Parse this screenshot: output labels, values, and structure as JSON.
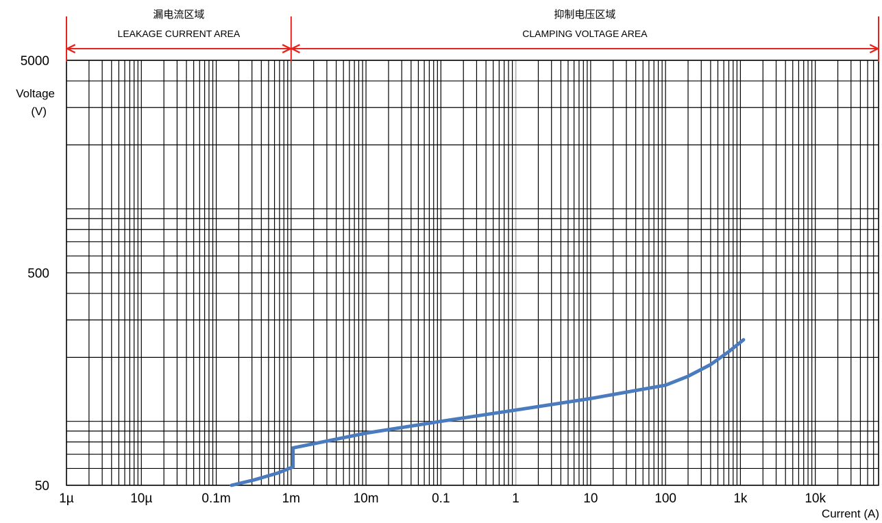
{
  "chart_data": {
    "type": "line",
    "x_scale": "log",
    "y_scale": "log",
    "xlim": [
      1e-06,
      70000
    ],
    "ylim": [
      50,
      5000
    ],
    "grid": true,
    "x_ticks": [
      {
        "value": 1e-06,
        "label": "1µ"
      },
      {
        "value": 1e-05,
        "label": "10µ"
      },
      {
        "value": 0.0001,
        "label": "0.1m"
      },
      {
        "value": 0.001,
        "label": "1m"
      },
      {
        "value": 0.01,
        "label": "10m"
      },
      {
        "value": 0.1,
        "label": "0.1"
      },
      {
        "value": 1,
        "label": "1"
      },
      {
        "value": 10,
        "label": "10"
      },
      {
        "value": 100,
        "label": "100"
      },
      {
        "value": 1000,
        "label": "1k"
      },
      {
        "value": 10000,
        "label": "10k"
      }
    ],
    "y_ticks": [
      {
        "value": 5000,
        "label": "5000"
      },
      {
        "value": 500,
        "label": "500"
      },
      {
        "value": 50,
        "label": "50"
      }
    ],
    "xlabel": "Current (A)",
    "ylabel_line1": "Voltage",
    "ylabel_line2": "(V)",
    "regions": [
      {
        "label_cn": "漏电流区域",
        "label_en": "LEAKAGE CURRENT AREA",
        "x_start": 1e-06,
        "x_end": 0.001
      },
      {
        "label_cn": "抑制电压区域",
        "label_en": "CLAMPING VOLTAGE AREA",
        "x_start": 0.001,
        "x_end": 70000
      }
    ],
    "series": [
      {
        "color": "#4a7bbf",
        "x": [
          0.00016,
          0.00032,
          0.00065,
          0.00106,
          0.00106,
          0.01,
          0.1,
          1,
          10,
          100,
          200,
          400,
          700,
          1100
        ],
        "y": [
          50,
          53,
          57,
          61,
          75,
          88,
          100,
          113,
          128,
          148,
          163,
          185,
          213,
          242
        ]
      }
    ],
    "colors": {
      "grid": "#000000",
      "region_arrow": "#e8211d",
      "highlight_gridline": "#bbbbbb"
    }
  }
}
